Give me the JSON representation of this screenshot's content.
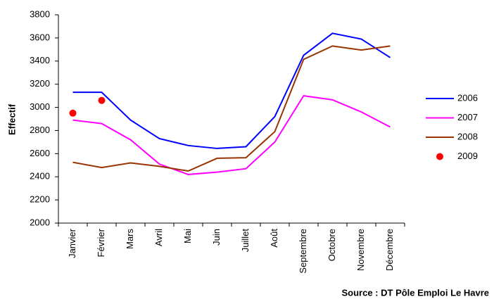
{
  "chart_data": {
    "type": "line",
    "y_label": "Effectif",
    "source": "Source : DT Pôle Emploi Le Havre",
    "categories": [
      "Janvier",
      "Février",
      "Mars",
      "Avril",
      "Mai",
      "Juin",
      "Juillet",
      "Août",
      "Septembre",
      "Octobre",
      "Novembre",
      "Décembre"
    ],
    "series": [
      {
        "name": "2006",
        "color": "#0000ff",
        "style": "line",
        "values": [
          3130,
          3130,
          2890,
          2730,
          2670,
          2645,
          2660,
          2920,
          3450,
          3640,
          3590,
          3430
        ]
      },
      {
        "name": "2007",
        "color": "#ff00ff",
        "style": "line",
        "values": [
          2890,
          2860,
          2720,
          2510,
          2420,
          2440,
          2470,
          2700,
          3100,
          3065,
          2960,
          2830
        ]
      },
      {
        "name": "2008",
        "color": "#993300",
        "style": "line",
        "values": [
          2525,
          2480,
          2520,
          2490,
          2450,
          2560,
          2565,
          2790,
          3415,
          3530,
          3495,
          3530
        ]
      },
      {
        "name": "2009",
        "color": "#ff0000",
        "style": "marker",
        "values": [
          2950,
          3060,
          null,
          null,
          null,
          null,
          null,
          null,
          null,
          null,
          null,
          null
        ]
      }
    ],
    "ylim": [
      2000,
      3800
    ],
    "yticks": [
      2000,
      2200,
      2400,
      2600,
      2800,
      3000,
      3200,
      3400,
      3600,
      3800
    ],
    "grid": false,
    "legend": "right"
  }
}
